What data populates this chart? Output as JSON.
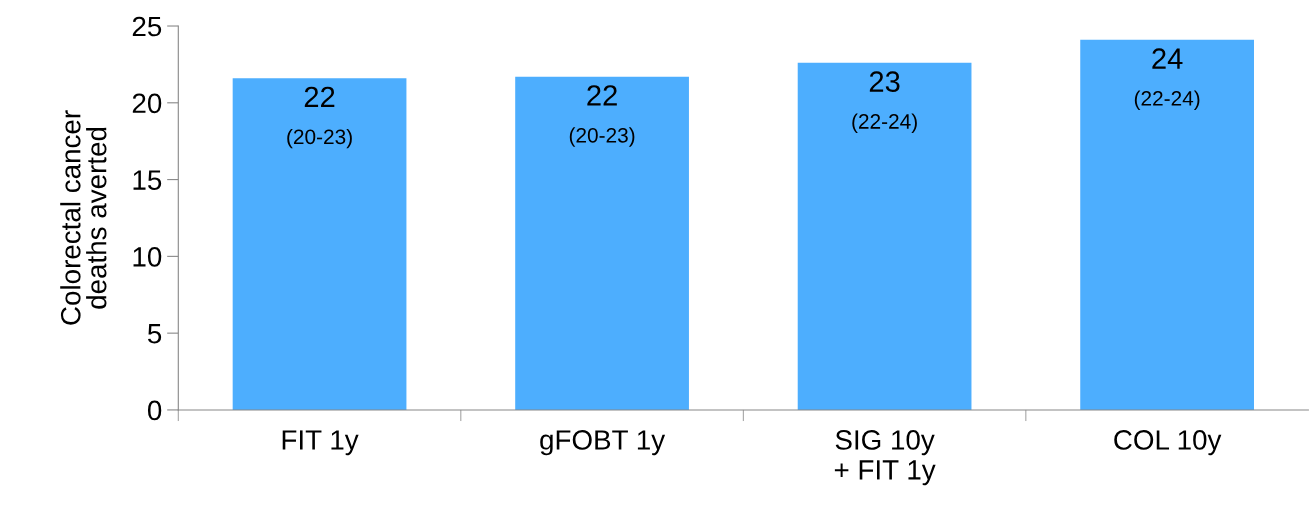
{
  "chart_data": {
    "type": "bar",
    "ylabel": "Colorectal cancer\ndeaths averted",
    "categories": [
      "FIT 1y",
      "gFOBT 1y",
      "SIG 10y\n+ FIT 1y",
      "COL 10y"
    ],
    "values": [
      21.6,
      21.7,
      22.6,
      24.1
    ],
    "color": "#4daefe",
    "value_labels": [
      "22\n(20-23)",
      "22\n(20-23)",
      "23\n(22-24)",
      "24\n(22-24)"
    ],
    "ylim": [
      0,
      25
    ],
    "yticks": [
      0,
      5,
      10,
      15,
      20,
      25
    ],
    "grid": false,
    "legend": false
  }
}
